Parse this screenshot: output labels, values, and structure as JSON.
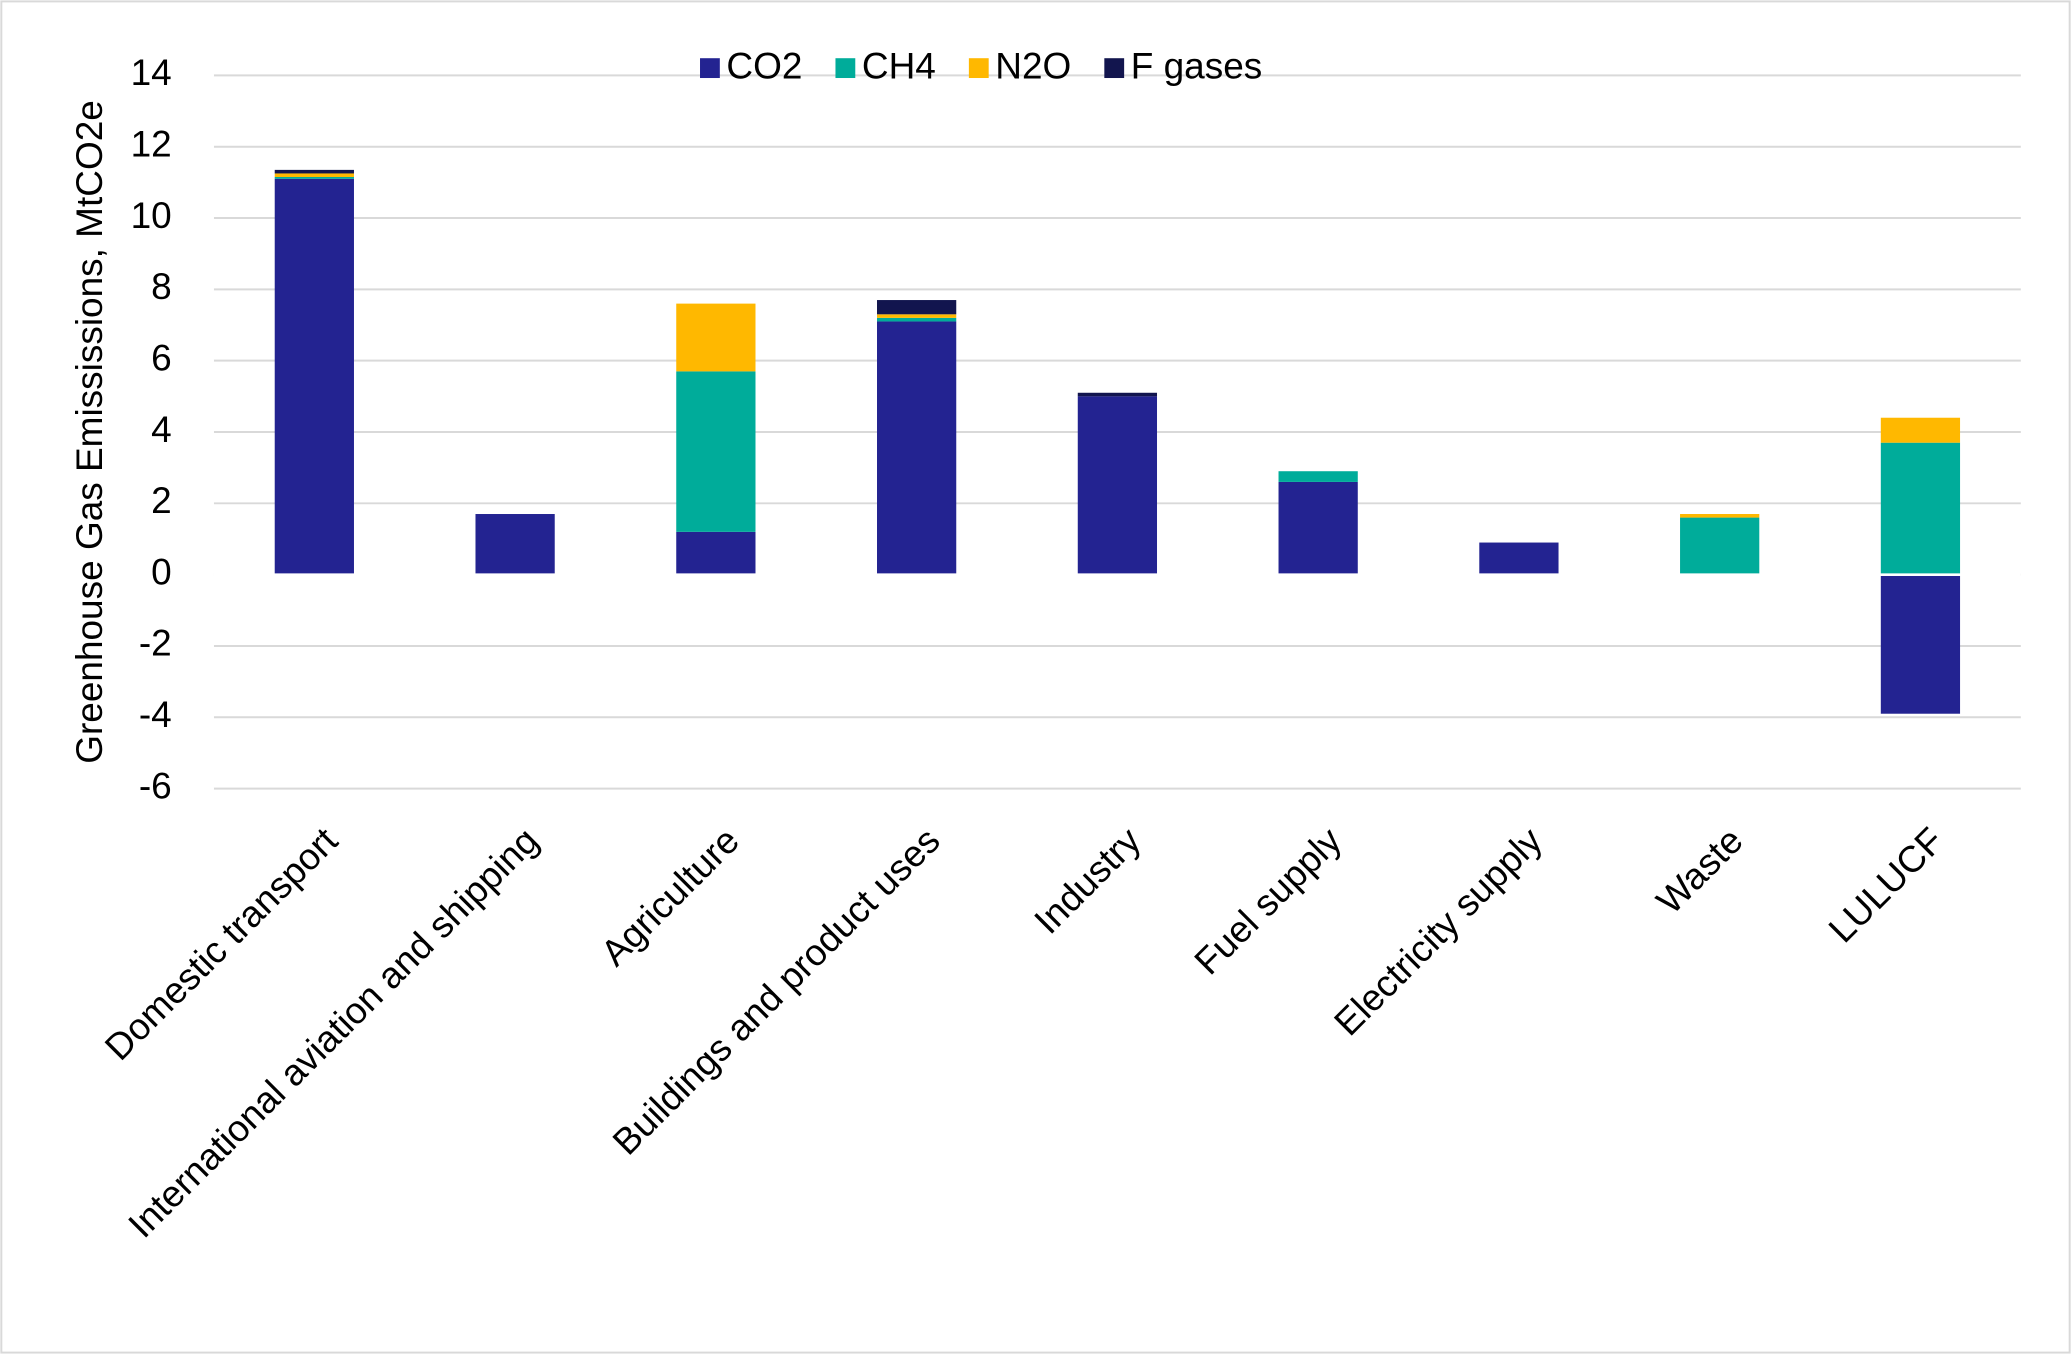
{
  "chart_data": {
    "type": "bar",
    "stacked": true,
    "y_label": "Greenhouse Gas Emississions, MtCO2e",
    "categories": [
      "Domestic transport",
      "International aviation and shipping",
      "Agriculture",
      "Buildings and product uses",
      "Industry",
      "Fuel supply",
      "Electricity supply",
      "Waste",
      "LULUCF"
    ],
    "series": [
      {
        "name": "CO2",
        "color": "#232391",
        "values": [
          11.1,
          1.7,
          1.2,
          7.1,
          5.0,
          2.6,
          0.9,
          0,
          -3.9
        ]
      },
      {
        "name": "CH4",
        "color": "#00ac9a",
        "values": [
          0.05,
          0,
          4.5,
          0.1,
          0,
          0.3,
          0,
          1.6,
          3.7
        ]
      },
      {
        "name": "N2O",
        "color": "#ffb800",
        "values": [
          0.1,
          0,
          1.9,
          0.1,
          0,
          0,
          0,
          0.1,
          0.7
        ]
      },
      {
        "name": "F gases",
        "color": "#12154e",
        "values": [
          0.1,
          0,
          0,
          0.4,
          0.1,
          0,
          0,
          0,
          0
        ]
      }
    ],
    "ylim": [
      -6,
      14
    ],
    "yticks": [
      -6,
      -4,
      -2,
      0,
      2,
      4,
      6,
      8,
      10,
      12,
      14
    ],
    "grid": true,
    "legend": "top"
  }
}
